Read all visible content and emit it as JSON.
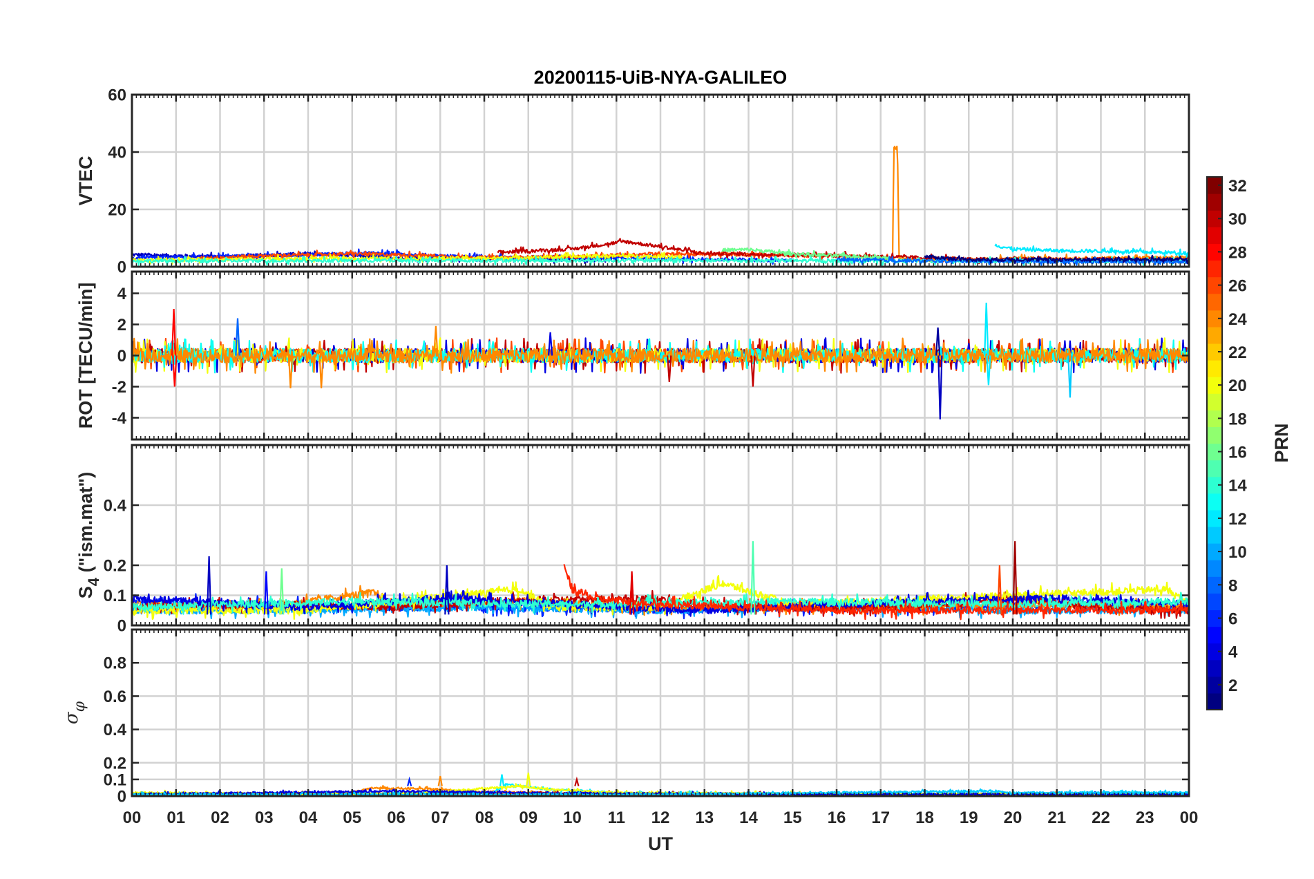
{
  "title": "20200115-UiB-NYA-GALILEO",
  "chart_data": [
    {
      "type": "line",
      "ylabel": "VTEC",
      "ylim": [
        0,
        60
      ],
      "yticks": [
        0,
        20,
        40,
        60
      ],
      "noise_level": 0.6,
      "series": [
        {
          "prn": 3,
          "pts": [
            [
              0,
              4.2
            ],
            [
              2,
              3.5
            ],
            [
              4,
              4.5
            ],
            [
              6,
              3.2
            ],
            [
              8,
              3.0
            ],
            [
              10,
              2.5
            ],
            [
              11,
              2.8
            ]
          ]
        },
        {
          "prn": 6,
          "pts": [
            [
              0,
              3.0
            ],
            [
              3,
              3.8
            ],
            [
              5.5,
              4.8
            ],
            [
              8,
              3.2
            ],
            [
              11,
              3.0
            ],
            [
              13,
              2.6
            ],
            [
              15,
              2.2
            ]
          ]
        },
        {
          "prn": 26,
          "pts": [
            [
              1.5,
              3.0
            ],
            [
              3,
              3.8
            ],
            [
              5,
              4.5
            ],
            [
              6.5,
              4.0
            ],
            [
              8,
              3.2
            ],
            [
              10,
              3.4
            ],
            [
              12,
              4.6
            ],
            [
              14,
              4.2
            ],
            [
              16,
              3.8
            ],
            [
              17.3,
              2.8
            ]
          ]
        },
        {
          "prn": 24,
          "pts": [
            [
              17.27,
              2.8
            ],
            [
              17.3,
              41.5
            ],
            [
              17.38,
              41.5
            ],
            [
              17.42,
              2.8
            ],
            [
              18.5,
              2.2
            ],
            [
              20,
              2.8
            ],
            [
              24,
              3.2
            ]
          ]
        },
        {
          "prn": 30,
          "pts": [
            [
              8.3,
              5.0
            ],
            [
              10,
              6.2
            ],
            [
              11.2,
              8.8
            ],
            [
              12,
              7.0
            ],
            [
              13,
              4.6
            ],
            [
              15,
              4.2
            ],
            [
              17,
              3.6
            ],
            [
              19,
              2.6
            ],
            [
              21,
              2.6
            ],
            [
              24,
              2.4
            ]
          ]
        },
        {
          "prn": 20,
          "pts": [
            [
              0,
              2.2
            ],
            [
              2,
              2.6
            ],
            [
              4,
              2.8
            ],
            [
              8,
              3.0
            ],
            [
              11,
              3.8
            ],
            [
              12.5,
              3.5
            ]
          ]
        },
        {
          "prn": 16,
          "pts": [
            [
              13.4,
              5.8
            ],
            [
              14,
              6.0
            ],
            [
              15,
              4.5
            ],
            [
              16.5,
              3.5
            ],
            [
              17.2,
              3.0
            ]
          ]
        },
        {
          "prn": 12,
          "pts": [
            [
              19.6,
              7.5
            ],
            [
              20,
              6.2
            ],
            [
              21,
              5.6
            ],
            [
              22,
              5.5
            ],
            [
              24,
              4.8
            ]
          ]
        },
        {
          "prn": 14,
          "pts": [
            [
              0,
              2.0
            ],
            [
              6,
              2.2
            ],
            [
              12,
              2.2
            ],
            [
              18,
              2.0
            ],
            [
              24,
              2.0
            ]
          ]
        },
        {
          "prn": 8,
          "pts": [
            [
              16,
              2.5
            ],
            [
              18,
              2.0
            ],
            [
              19.5,
              2.0
            ],
            [
              21,
              1.8
            ],
            [
              24,
              1.8
            ]
          ]
        },
        {
          "prn": 1,
          "pts": [
            [
              18,
              3.5
            ],
            [
              18.3,
              3.2
            ],
            [
              19,
              2.5
            ],
            [
              21,
              2.5
            ],
            [
              24,
              2.5
            ]
          ]
        }
      ],
      "spikes": []
    },
    {
      "type": "line",
      "ylabel": "ROT [TECU/min]",
      "ylim": [
        -5.4,
        5.4
      ],
      "yticks": [
        -4,
        -2,
        0,
        2,
        4
      ],
      "noise_level": 0.45,
      "series": [
        {
          "prn": 26,
          "pts": [
            [
              0,
              0
            ],
            [
              24,
              0
            ]
          ]
        },
        {
          "prn": 30,
          "pts": [
            [
              0,
              0
            ],
            [
              24,
              0
            ]
          ]
        },
        {
          "prn": 4,
          "pts": [
            [
              0,
              0
            ],
            [
              24,
              0
            ]
          ]
        },
        {
          "prn": 20,
          "pts": [
            [
              0,
              0
            ],
            [
              24,
              0
            ]
          ]
        },
        {
          "prn": 13,
          "pts": [
            [
              0,
              0
            ],
            [
              24,
              0
            ]
          ]
        },
        {
          "prn": 24,
          "pts": [
            [
              0,
              0
            ],
            [
              24,
              0
            ]
          ]
        }
      ],
      "spikes": [
        {
          "prn": 28,
          "t": 0.95,
          "v": 3.0
        },
        {
          "prn": 28,
          "t": 0.97,
          "v": -2.0
        },
        {
          "prn": 8,
          "t": 2.4,
          "v": 2.4
        },
        {
          "prn": 24,
          "t": 3.6,
          "v": -2.1
        },
        {
          "prn": 24,
          "t": 4.3,
          "v": -2.1
        },
        {
          "prn": 24,
          "t": 6.9,
          "v": 1.9
        },
        {
          "prn": 3,
          "t": 18.35,
          "v": -4.1
        },
        {
          "prn": 2,
          "t": 18.3,
          "v": 1.8
        },
        {
          "prn": 12,
          "t": 19.4,
          "v": 3.4
        },
        {
          "prn": 12,
          "t": 19.45,
          "v": -1.9
        },
        {
          "prn": 11,
          "t": 21.3,
          "v": -2.7
        },
        {
          "prn": 30,
          "t": 12.2,
          "v": -1.7
        },
        {
          "prn": 30,
          "t": 14.1,
          "v": -2.0
        },
        {
          "prn": 4,
          "t": 9.5,
          "v": 1.5
        }
      ]
    },
    {
      "type": "line",
      "ylabel": "S",
      "ylabel_sub": "4",
      "ylabel_rest": " (\"ism.mat\")",
      "ylim": [
        0,
        0.6
      ],
      "yticks": [
        0,
        0.1,
        0.2,
        0.4
      ],
      "noise_level": 0.012,
      "series": [
        {
          "prn": 6,
          "pts": [
            [
              0,
              0.08
            ],
            [
              3,
              0.07
            ],
            [
              6,
              0.06
            ],
            [
              9,
              0.06
            ],
            [
              12,
              0.05
            ],
            [
              15,
              0.06
            ],
            [
              18,
              0.06
            ],
            [
              21,
              0.07
            ],
            [
              24,
              0.06
            ]
          ]
        },
        {
          "prn": 10,
          "pts": [
            [
              0,
              0.05
            ],
            [
              4,
              0.05
            ],
            [
              8,
              0.06
            ],
            [
              12,
              0.05
            ],
            [
              16,
              0.06
            ],
            [
              20,
              0.05
            ],
            [
              24,
              0.05
            ]
          ]
        },
        {
          "prn": 24,
          "pts": [
            [
              0,
              0.07
            ],
            [
              3,
              0.06
            ],
            [
              5.5,
              0.11
            ],
            [
              6,
              0.07
            ],
            [
              9,
              0.08
            ],
            [
              12,
              0.06
            ],
            [
              16,
              0.06
            ],
            [
              20,
              0.07
            ],
            [
              24,
              0.06
            ]
          ]
        },
        {
          "prn": 30,
          "pts": [
            [
              0,
              0.06
            ],
            [
              3,
              0.07
            ],
            [
              6,
              0.06
            ],
            [
              8,
              0.08
            ],
            [
              11.5,
              0.09
            ],
            [
              14,
              0.06
            ],
            [
              17,
              0.06
            ],
            [
              20,
              0.09
            ],
            [
              22,
              0.06
            ],
            [
              24,
              0.05
            ]
          ]
        },
        {
          "prn": 20,
          "pts": [
            [
              0,
              0.05
            ],
            [
              4,
              0.05
            ],
            [
              8.8,
              0.12
            ],
            [
              9.5,
              0.06
            ],
            [
              12,
              0.06
            ],
            [
              13.4,
              0.14
            ],
            [
              15,
              0.07
            ],
            [
              23.5,
              0.12
            ],
            [
              24,
              0.07
            ]
          ]
        },
        {
          "prn": 4,
          "pts": [
            [
              0,
              0.09
            ],
            [
              4,
              0.06
            ],
            [
              7,
              0.09
            ],
            [
              10,
              0.07
            ],
            [
              13,
              0.05
            ],
            [
              16,
              0.07
            ],
            [
              18,
              0.08
            ],
            [
              21,
              0.09
            ],
            [
              24,
              0.07
            ]
          ]
        },
        {
          "prn": 14,
          "pts": [
            [
              0,
              0.06
            ],
            [
              5,
              0.08
            ],
            [
              10,
              0.07
            ],
            [
              15,
              0.08
            ],
            [
              20,
              0.07
            ],
            [
              24,
              0.08
            ]
          ]
        },
        {
          "prn": 27,
          "pts": [
            [
              9.8,
              0.2
            ],
            [
              10,
              0.12
            ],
            [
              10.5,
              0.09
            ],
            [
              12,
              0.07
            ],
            [
              16,
              0.05
            ],
            [
              20,
              0.05
            ],
            [
              24,
              0.05
            ]
          ]
        }
      ],
      "spikes": [
        {
          "prn": 3,
          "t": 1.75,
          "v": 0.23
        },
        {
          "prn": 3,
          "t": 7.15,
          "v": 0.2
        },
        {
          "prn": 15,
          "t": 14.1,
          "v": 0.28
        },
        {
          "prn": 31,
          "t": 20.05,
          "v": 0.28
        },
        {
          "prn": 26,
          "t": 19.7,
          "v": 0.2
        },
        {
          "prn": 29,
          "t": 11.35,
          "v": 0.18
        },
        {
          "prn": 16,
          "t": 3.4,
          "v": 0.19
        },
        {
          "prn": 5,
          "t": 3.05,
          "v": 0.18
        }
      ]
    },
    {
      "type": "line",
      "ylabel": "σ",
      "ylabel_sub": "φ",
      "ylim": [
        0,
        1
      ],
      "yticks": [
        0,
        0.1,
        0.2,
        0.4,
        0.6,
        0.8
      ],
      "noise_level": 0.006,
      "series": [
        {
          "prn": 30,
          "pts": [
            [
              0,
              0.01
            ],
            [
              5,
              0.015
            ],
            [
              8,
              0.02
            ],
            [
              12,
              0.015
            ],
            [
              16,
              0.01
            ],
            [
              20,
              0.01
            ],
            [
              24,
              0.01
            ]
          ]
        },
        {
          "prn": 24,
          "pts": [
            [
              0,
              0.01
            ],
            [
              5,
              0.02
            ],
            [
              5.5,
              0.05
            ],
            [
              7,
              0.04
            ],
            [
              8,
              0.02
            ],
            [
              12,
              0.01
            ],
            [
              24,
              0.01
            ]
          ]
        },
        {
          "prn": 12,
          "pts": [
            [
              0,
              0.01
            ],
            [
              8.2,
              0.02
            ],
            [
              8.5,
              0.07
            ],
            [
              9.5,
              0.04
            ],
            [
              11,
              0.02
            ],
            [
              16,
              0.01
            ],
            [
              22,
              0.02
            ],
            [
              24,
              0.02
            ]
          ]
        },
        {
          "prn": 20,
          "pts": [
            [
              0,
              0.02
            ],
            [
              6,
              0.01
            ],
            [
              8.8,
              0.06
            ],
            [
              9.5,
              0.04
            ],
            [
              11,
              0.02
            ],
            [
              18,
              0.01
            ],
            [
              24,
              0.01
            ]
          ]
        },
        {
          "prn": 4,
          "pts": [
            [
              0,
              0.01
            ],
            [
              3,
              0.02
            ],
            [
              6,
              0.03
            ],
            [
              9,
              0.02
            ],
            [
              14,
              0.01
            ],
            [
              24,
              0.01
            ]
          ]
        },
        {
          "prn": 11,
          "pts": [
            [
              0,
              0.01
            ],
            [
              12,
              0.01
            ],
            [
              19.6,
              0.03
            ],
            [
              20,
              0.02
            ],
            [
              24,
              0.02
            ]
          ]
        }
      ],
      "spikes": [
        {
          "prn": 12,
          "t": 8.4,
          "v": 0.13
        },
        {
          "prn": 20,
          "t": 9.0,
          "v": 0.14
        },
        {
          "prn": 24,
          "t": 7.0,
          "v": 0.12
        },
        {
          "prn": 30,
          "t": 10.1,
          "v": 0.1
        },
        {
          "prn": 6,
          "t": 6.3,
          "v": 0.1
        }
      ]
    }
  ],
  "xaxis": {
    "label": "UT",
    "range": [
      0,
      24
    ],
    "ticklabels": [
      "00",
      "01",
      "02",
      "03",
      "04",
      "05",
      "06",
      "07",
      "08",
      "09",
      "10",
      "11",
      "12",
      "13",
      "14",
      "15",
      "16",
      "17",
      "18",
      "19",
      "20",
      "21",
      "22",
      "23",
      "00"
    ]
  },
  "colorbar": {
    "label": "PRN",
    "range": [
      1,
      32
    ],
    "ticks": [
      2,
      4,
      6,
      8,
      10,
      12,
      14,
      16,
      18,
      20,
      22,
      24,
      26,
      28,
      30,
      32
    ],
    "colormap": "jet",
    "colors": [
      "#00008f",
      "#0000ff",
      "#00ffff",
      "#ffff00",
      "#ff0000",
      "#800000"
    ]
  },
  "grid": true
}
